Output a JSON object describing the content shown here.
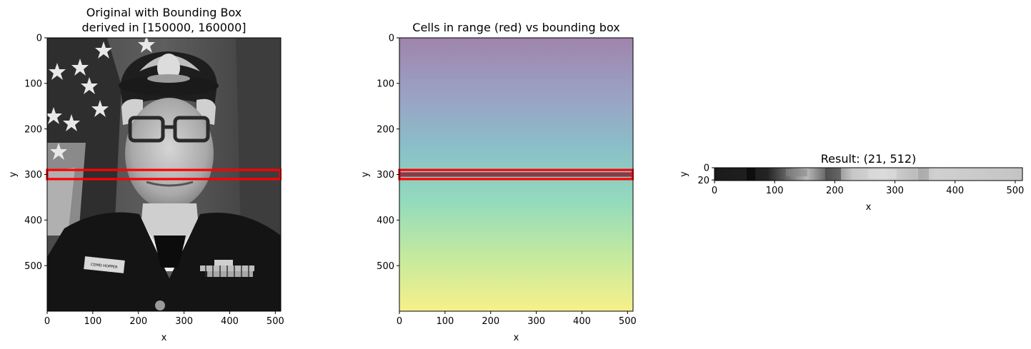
{
  "figure": {
    "panels": [
      {
        "title_lines": [
          "Original with Bounding Box",
          "derived in [150000, 160000]"
        ],
        "xlabel": "x",
        "ylabel": "y"
      },
      {
        "title_lines": [
          "Cells in range (red) vs bounding box"
        ],
        "xlabel": "x",
        "ylabel": "y"
      },
      {
        "title_lines": [
          "Result: (21, 512)"
        ],
        "xlabel": "x",
        "ylabel": "y"
      }
    ]
  },
  "chart_data": [
    {
      "type": "heatmap",
      "content": "grayscale photograph",
      "title": "Original with Bounding Box\nderived in [150000, 160000]",
      "xlabel": "x",
      "ylabel": "y",
      "xlim": [
        0,
        512
      ],
      "ylim": [
        600,
        0
      ],
      "xticks": [
        0,
        100,
        200,
        300,
        400,
        500
      ],
      "yticks": [
        0,
        100,
        200,
        300,
        400,
        500
      ],
      "bounding_box": {
        "x0": 0,
        "x1": 511,
        "y0": 290,
        "y1": 310,
        "color": "#ff0000"
      },
      "image_text": [
        "CDMD HOPPER"
      ]
    },
    {
      "type": "heatmap",
      "content": "vertical gradient (viridis-like)",
      "title": "Cells in range (red) vs bounding box",
      "xlabel": "x",
      "ylabel": "y",
      "xlim": [
        0,
        512
      ],
      "ylim": [
        600,
        0
      ],
      "xticks": [
        0,
        100,
        200,
        300,
        400,
        500
      ],
      "yticks": [
        0,
        100,
        200,
        300,
        400,
        500
      ],
      "gradient_colors": [
        "#a084ab",
        "#9ba0c4",
        "#8abfc8",
        "#93dbbd",
        "#c4ea9e",
        "#f7f08b"
      ],
      "range_band": {
        "y0": 295,
        "y1": 305,
        "color": "#8a3a45"
      },
      "bounding_box": {
        "x0": 0,
        "x1": 511,
        "y0": 290,
        "y1": 310,
        "color": "#ff0000"
      }
    },
    {
      "type": "heatmap",
      "content": "cropped grayscale strip",
      "title": "Result: (21, 512)",
      "shape": [
        21,
        512
      ],
      "xlabel": "x",
      "ylabel": "y",
      "xlim": [
        0,
        512
      ],
      "ylim": [
        21,
        0
      ],
      "xticks": [
        0,
        100,
        200,
        300,
        400,
        500
      ],
      "yticks": [
        0,
        20
      ]
    }
  ]
}
